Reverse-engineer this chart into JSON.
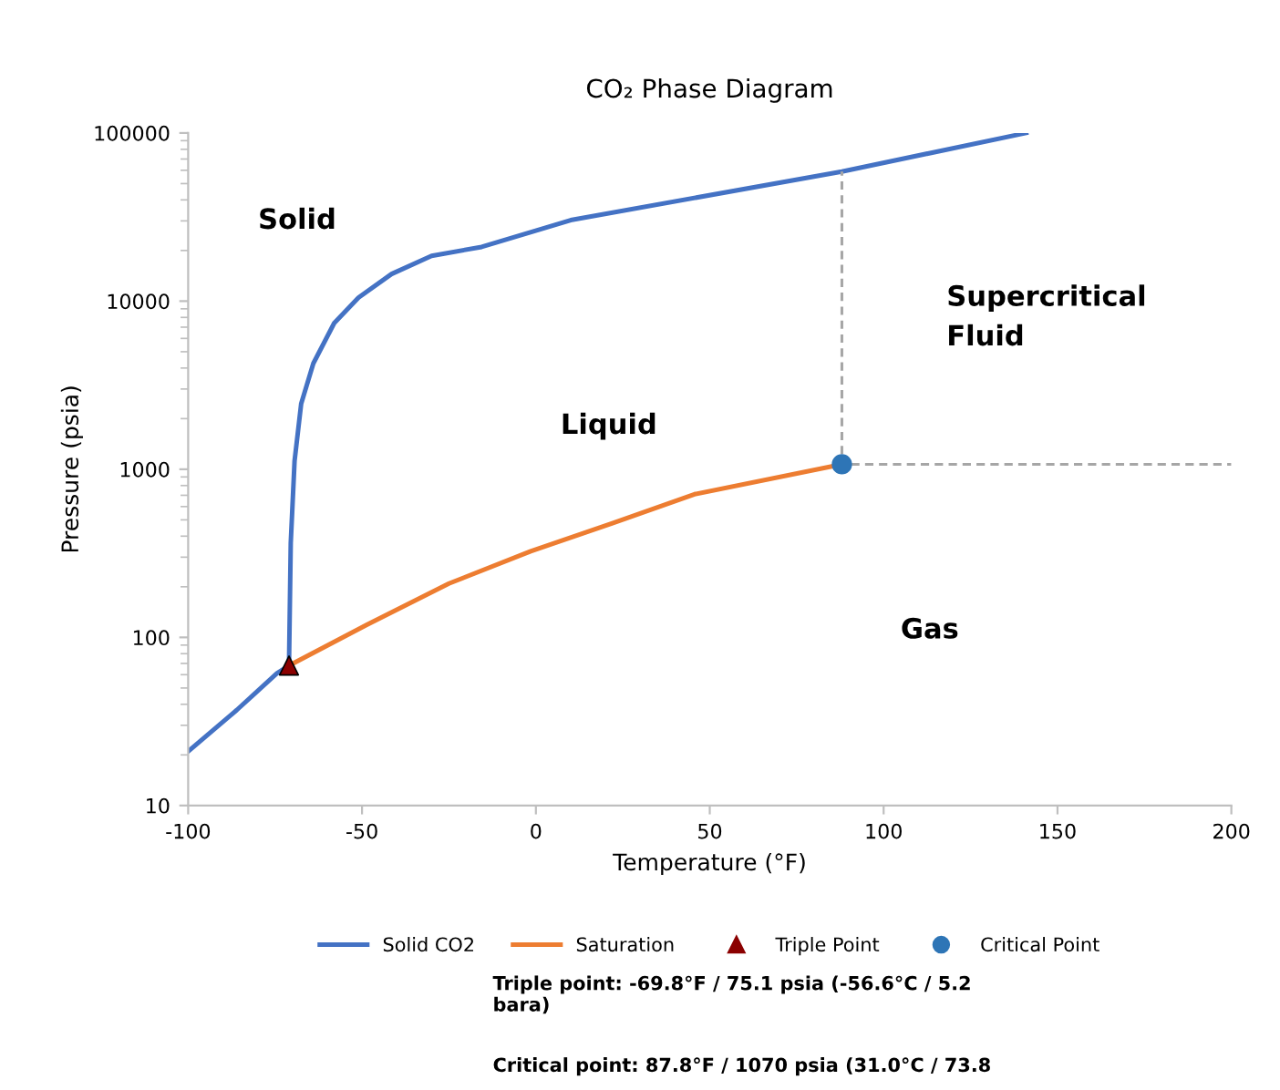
{
  "chart_data": {
    "type": "line",
    "title": "CO₂ Phase Diagram",
    "xlabel": "Temperature (°F)",
    "ylabel": "Pressure (psia)",
    "xlim": [
      -100,
      200
    ],
    "xticks": [
      -100,
      -50,
      0,
      50,
      100,
      150,
      200
    ],
    "ylim": [
      10,
      100000
    ],
    "yticks": [
      10,
      100,
      1000,
      10000,
      100000
    ],
    "log": "y",
    "grid": false,
    "legend": "bottom",
    "series": [
      {
        "name": "Solid CO2",
        "color": "#4472c4",
        "marker": "none",
        "x": [
          -100,
          -86,
          -74.5,
          -71,
          -70.5,
          -69.4,
          -67.5,
          -64,
          -58,
          -51,
          -41.5,
          -30,
          -15.6,
          10,
          88,
          141
        ],
        "values": [
          21,
          37,
          61,
          68,
          364,
          1120,
          2450,
          4260,
          7400,
          10500,
          14500,
          18600,
          21000,
          30300,
          59000,
          100000
        ]
      },
      {
        "name": "Saturation",
        "color": "#ed7d31",
        "marker": "none",
        "x": [
          -71,
          -48.6,
          -25,
          -1.5,
          22,
          45.6,
          88
        ],
        "values": [
          68,
          119,
          209,
          325,
          478,
          710,
          1070
        ]
      },
      {
        "name": "Triple Point",
        "type": "scatter",
        "color": "#8b0000",
        "marker": "triangle",
        "x": [
          -71
        ],
        "values": [
          68
        ]
      },
      {
        "name": "Critical Point",
        "type": "scatter",
        "color": "#2e75b6",
        "marker": "circle",
        "x": [
          88
        ],
        "values": [
          1070
        ]
      },
      {
        "type": "line",
        "color": "#a6a6a6",
        "marker": "none",
        "line_style": "dashed",
        "x": [
          88,
          88
        ],
        "values": [
          1070,
          59000
        ]
      },
      {
        "type": "line",
        "color": "#a6a6a6",
        "marker": "none",
        "line_style": "dashed",
        "x": [
          88,
          200
        ],
        "values": [
          1070,
          1070
        ]
      }
    ],
    "annotations": [
      "Solid",
      "Liquid",
      "Supercritical\nFluid",
      "Gas",
      "Triple point: -69.8°F / 75.1 psia (-56.6°C / 5.2\nbara)",
      "Critical point: 87.8°F / 1070 psia (31.0°C / 73.8"
    ]
  }
}
